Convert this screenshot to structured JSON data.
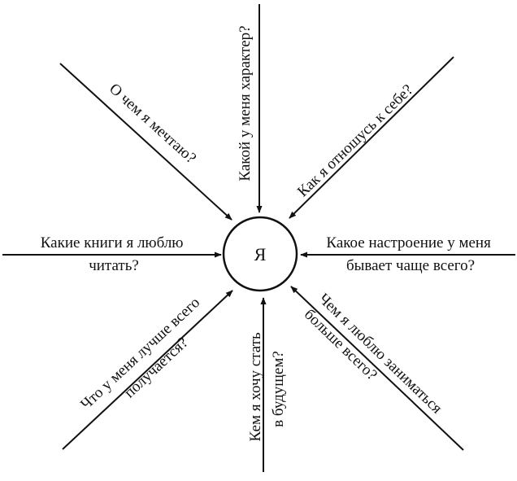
{
  "center": {
    "label": "Я"
  },
  "colors": {
    "ink": "#111111",
    "background": "#ffffff"
  },
  "spokes": {
    "top": {
      "lines": [
        "Какой у меня характер?"
      ]
    },
    "top_left": {
      "lines": [
        "О чем я мечтаю?"
      ]
    },
    "top_right": {
      "lines": [
        "Как я отношусь к себе?"
      ]
    },
    "left": {
      "lines": [
        "Какие книги я люблю",
        "читать?"
      ]
    },
    "right": {
      "lines": [
        "Какое настроение у меня",
        "бывает чаще всего?"
      ]
    },
    "bottom_left": {
      "lines": [
        "Что у меня лучше всего",
        "получается?"
      ]
    },
    "bottom": {
      "lines": [
        "Кем я хочу стать",
        "в будущем?"
      ]
    },
    "bottom_right": {
      "lines": [
        "Чем я люблю заниматься",
        "больше всего?"
      ]
    }
  }
}
